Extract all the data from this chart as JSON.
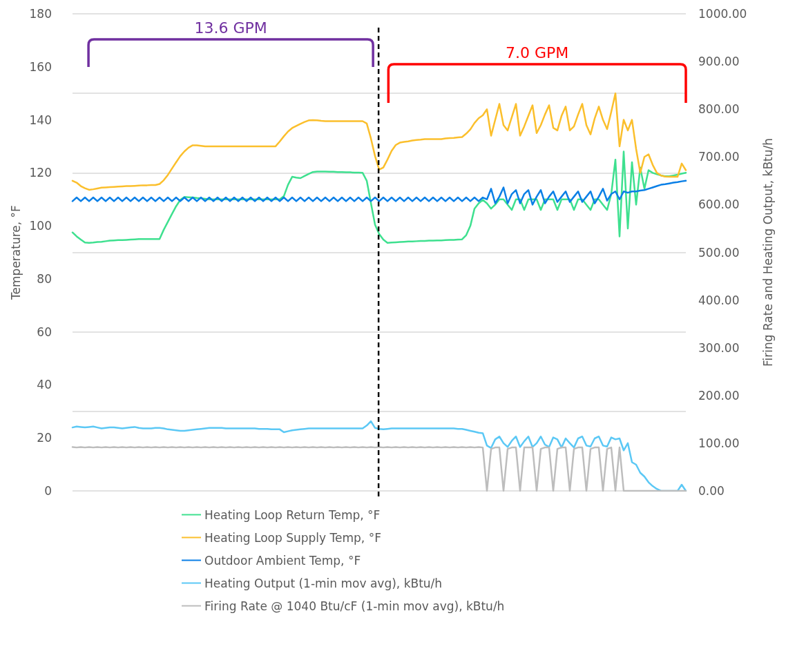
{
  "chart_data": {
    "type": "line",
    "ylabel": "Temperature, °F",
    "y2label": "Firing Rate and Heating Output, kBtu/h",
    "categories": [
      null,
      null,
      null,
      null,
      null,
      null,
      null,
      null,
      null,
      null,
      null,
      null,
      null,
      null,
      null,
      null,
      null,
      null,
      null,
      null,
      null,
      null,
      null,
      null,
      null,
      null,
      null,
      null,
      null,
      null,
      null,
      null,
      null,
      null,
      null,
      null,
      null,
      null,
      null,
      null,
      null,
      null,
      null,
      null,
      null,
      null,
      null,
      null,
      null,
      null,
      null,
      null,
      null,
      null,
      null,
      null,
      null,
      null,
      null,
      null,
      null,
      null,
      null,
      null,
      null,
      null,
      null,
      null,
      null,
      null,
      null,
      null,
      null,
      null,
      null,
      null,
      null,
      null,
      null,
      null,
      null,
      null,
      null,
      null,
      null,
      null,
      null,
      null,
      null,
      null,
      null,
      null,
      null,
      null,
      null,
      null,
      null,
      null,
      null,
      null,
      null,
      null,
      null,
      null,
      null,
      null,
      null,
      null,
      null,
      null,
      null,
      null,
      null,
      null,
      null,
      null,
      null,
      null,
      null,
      null,
      null,
      null,
      null,
      null,
      null,
      null,
      null,
      null,
      null,
      null,
      null,
      null,
      null,
      null,
      null,
      null,
      null,
      null,
      null,
      null,
      null,
      null,
      null,
      null,
      null,
      null,
      null,
      null,
      null
    ],
    "ylim": [
      0,
      180
    ],
    "yticks": [
      0,
      20,
      40,
      60,
      80,
      100,
      120,
      140,
      160,
      180
    ],
    "y2lim": [
      0,
      1000
    ],
    "y2ticks": [
      {
        "value": 0,
        "label": "0.00"
      },
      {
        "value": 100,
        "label": "100.00"
      },
      {
        "value": 200,
        "label": "200.00"
      },
      {
        "value": 300,
        "label": "300.00"
      },
      {
        "value": 400,
        "label": "400.00"
      },
      {
        "value": 500,
        "label": "500.00"
      },
      {
        "value": 600,
        "label": "600.00"
      },
      {
        "value": 700,
        "label": "700.00"
      },
      {
        "value": 800,
        "label": "800.00"
      },
      {
        "value": 900,
        "label": "900.00"
      },
      {
        "value": 1000,
        "label": "1000.00"
      }
    ],
    "tick_labels": "y",
    "grid": "y",
    "legend": "bottom",
    "marker": "none",
    "line_style": "solid",
    "annotations": [
      "13.6 GPM",
      "7.0 GPM"
    ],
    "series": [
      {
        "name": "Heating Loop Return Temp, °F",
        "color": "#3ee08f",
        "values": [
          97.5,
          96,
          94.8,
          93.7,
          93.6,
          93.7,
          93.9,
          94,
          94.2,
          94.4,
          94.5,
          94.6,
          94.6,
          94.7,
          94.8,
          94.9,
          95,
          95,
          95,
          95,
          95,
          95,
          98.5,
          101.5,
          104.5,
          107.4,
          109.8,
          110.9,
          110.8,
          110.7,
          110.5,
          110.4,
          110.2,
          110,
          110,
          110,
          110,
          110,
          110,
          110,
          110,
          110,
          110,
          110,
          110,
          110,
          110,
          110,
          110,
          110,
          110,
          111.2,
          115.5,
          118.5,
          118.2,
          118,
          118.8,
          119.6,
          120.3,
          120.5,
          120.5,
          120.5,
          120.4,
          120.4,
          120.3,
          120.3,
          120.2,
          120.2,
          120.1,
          120.1,
          120,
          117,
          108.6,
          100.4,
          96.9,
          94.8,
          93.6,
          93.7,
          93.8,
          93.9,
          94,
          94.1,
          94.1,
          94.2,
          94.3,
          94.3,
          94.4,
          94.4,
          94.5,
          94.5,
          94.6,
          94.7,
          94.7,
          94.8,
          94.9,
          96.5,
          100,
          106.5,
          108.5,
          109.8,
          108.5,
          106.5,
          108,
          110,
          110,
          108,
          106,
          110,
          110,
          106,
          110,
          110,
          110,
          106,
          110,
          110,
          110,
          106,
          110,
          110,
          110,
          106,
          110,
          110,
          108,
          106,
          110,
          110,
          108,
          106,
          112,
          125,
          96,
          128,
          99,
          124,
          108,
          122,
          114,
          121,
          120,
          119.5,
          119,
          118.7,
          118.7,
          119,
          119.3,
          119.7,
          120
        ]
      },
      {
        "name": "Heating Loop Supply Temp, °F",
        "color": "#fbbf2c",
        "values": [
          117,
          116.3,
          115,
          114.2,
          113.6,
          113.8,
          114.1,
          114.4,
          114.5,
          114.6,
          114.7,
          114.8,
          114.9,
          115,
          115,
          115.1,
          115.2,
          115.3,
          115.3,
          115.4,
          115.4,
          115.8,
          117.2,
          119.2,
          121.6,
          124,
          126.3,
          128.1,
          129.5,
          130.4,
          130.4,
          130.2,
          130,
          130,
          130,
          130,
          130,
          130,
          130,
          130,
          130,
          130,
          130,
          130,
          130,
          130,
          130,
          130,
          130,
          130,
          131.8,
          133.8,
          135.6,
          136.9,
          137.7,
          138.5,
          139.2,
          139.8,
          139.9,
          139.8,
          139.6,
          139.5,
          139.5,
          139.5,
          139.5,
          139.5,
          139.5,
          139.5,
          139.5,
          139.5,
          139.5,
          138.6,
          133,
          126.3,
          121.2,
          122,
          125,
          128.3,
          130.5,
          131.4,
          131.7,
          131.9,
          132.2,
          132.4,
          132.5,
          132.7,
          132.7,
          132.7,
          132.7,
          132.7,
          133,
          133.1,
          133.2,
          133.4,
          133.5,
          134.8,
          136.4,
          138.8,
          140.6,
          141.7,
          144,
          134,
          140,
          146,
          138,
          136,
          141,
          146,
          134,
          137.5,
          141.5,
          145.5,
          135,
          138,
          142,
          145.5,
          137,
          136,
          141.5,
          145,
          136,
          137.5,
          142,
          146,
          138,
          134.5,
          140.5,
          145,
          140,
          136.5,
          143,
          150,
          130,
          140,
          136,
          140,
          129,
          120,
          126,
          127,
          123,
          120,
          119,
          118.6,
          118.5,
          118.5,
          118.5,
          123.5,
          121
        ]
      },
      {
        "name": "Outdoor Ambient Temp, °F",
        "color": "#0a7fe6",
        "values": [
          109.3,
          110.7,
          109.3,
          110.7,
          109.3,
          110.7,
          109.3,
          110.7,
          109.3,
          110.7,
          109.3,
          110.7,
          109.3,
          110.7,
          109.3,
          110.7,
          109.3,
          110.7,
          109.3,
          110.7,
          109.3,
          110.7,
          109.3,
          110.7,
          109.3,
          110.7,
          109.3,
          110.7,
          109.3,
          110.7,
          109.3,
          110.7,
          109.3,
          110.7,
          109.3,
          110.7,
          109.3,
          110.7,
          109.3,
          110.7,
          109.3,
          110.7,
          109.3,
          110.7,
          109.3,
          110.7,
          109.3,
          110.7,
          109.3,
          110.7,
          109.3,
          110.7,
          109.3,
          110.7,
          109.3,
          110.7,
          109.3,
          110.7,
          109.3,
          110.7,
          109.3,
          110.7,
          109.3,
          110.7,
          109.3,
          110.7,
          109.3,
          110.7,
          109.3,
          110.7,
          109.3,
          110.7,
          109.3,
          110.7,
          109.3,
          110.7,
          109.3,
          110.7,
          109.3,
          110.7,
          109.3,
          110.7,
          109.3,
          110.7,
          109.3,
          110.7,
          109.3,
          110.7,
          109.3,
          110.7,
          109.3,
          110.7,
          109.3,
          110.7,
          109.3,
          110.7,
          109.3,
          110.7,
          109.3,
          110.7,
          110,
          114,
          108.5,
          111,
          114.5,
          108.5,
          112,
          113.5,
          108.5,
          112,
          113.5,
          108,
          111,
          113.5,
          108.5,
          111,
          113,
          109,
          111,
          113,
          109,
          111,
          113,
          109,
          111,
          113,
          108.5,
          111,
          114,
          109.5,
          112,
          113,
          110,
          113,
          112.5,
          113,
          113,
          113.3,
          113.5,
          114,
          114.5,
          115,
          115.5,
          115.7,
          116,
          116.3,
          116.5,
          116.8,
          117
        ]
      },
      {
        "name": "Heating Output (1-min mov avg), kBtu/h",
        "color": "#5bc8f5",
        "axis": "y2",
        "values": [
          133,
          135,
          134,
          133,
          134,
          135,
          133,
          131,
          132,
          133,
          133,
          132,
          131,
          132,
          133,
          134,
          132,
          131,
          131,
          131,
          132,
          132,
          131,
          129,
          128,
          127,
          126,
          126,
          127,
          128,
          129,
          130,
          131,
          132,
          132,
          132,
          132,
          131,
          131,
          131,
          131,
          131,
          131,
          131,
          131,
          130,
          130,
          130,
          129,
          129,
          129,
          123,
          125,
          127,
          128,
          129,
          130,
          131,
          131,
          131,
          131,
          131,
          131,
          131,
          131,
          131,
          131,
          131,
          131,
          131,
          131,
          137,
          146,
          132,
          130,
          129,
          130,
          131,
          131,
          131,
          131,
          131,
          131,
          131,
          131,
          131,
          131,
          131,
          131,
          131,
          131,
          131,
          131,
          130,
          130,
          128,
          126,
          124,
          122,
          121,
          95,
          90,
          108,
          114,
          100,
          92,
          105,
          114,
          92,
          104,
          114,
          92,
          100,
          114,
          97,
          92,
          112,
          108,
          91,
          110,
          100,
          91,
          110,
          114,
          95,
          93,
          110,
          114,
          95,
          93,
          112,
          108,
          110,
          85,
          100,
          60,
          55,
          38,
          30,
          18,
          10,
          4,
          0,
          0,
          0,
          0,
          0,
          13,
          0
        ]
      },
      {
        "name": "Firing Rate @ 1040 Btu/cF (1-min mov avg), kBtu/h",
        "color": "#bdbdbd",
        "axis": "y2",
        "values": [
          92,
          91,
          92,
          91,
          92,
          91,
          92,
          91,
          92,
          91,
          92,
          91,
          92,
          91,
          92,
          91,
          92,
          91,
          92,
          91,
          92,
          91,
          92,
          91,
          92,
          91,
          92,
          91,
          92,
          91,
          92,
          91,
          92,
          91,
          92,
          91,
          92,
          91,
          92,
          91,
          92,
          91,
          92,
          91,
          92,
          91,
          92,
          91,
          92,
          91,
          92,
          91,
          92,
          91,
          92,
          91,
          92,
          91,
          92,
          91,
          92,
          91,
          92,
          91,
          92,
          91,
          92,
          91,
          92,
          91,
          92,
          91,
          92,
          91,
          92,
          91,
          92,
          91,
          92,
          91,
          92,
          91,
          92,
          91,
          92,
          91,
          92,
          91,
          92,
          91,
          92,
          91,
          92,
          91,
          92,
          91,
          92,
          91,
          92,
          91,
          0,
          88,
          91,
          91,
          0,
          88,
          91,
          91,
          0,
          91,
          91,
          91,
          0,
          88,
          91,
          91,
          0,
          88,
          91,
          91,
          0,
          88,
          91,
          91,
          0,
          88,
          91,
          91,
          0,
          88,
          91,
          0,
          91,
          0,
          0,
          0,
          0,
          0,
          0,
          0,
          0,
          0,
          0,
          0,
          0,
          0,
          0,
          0,
          0
        ]
      }
    ]
  }
}
